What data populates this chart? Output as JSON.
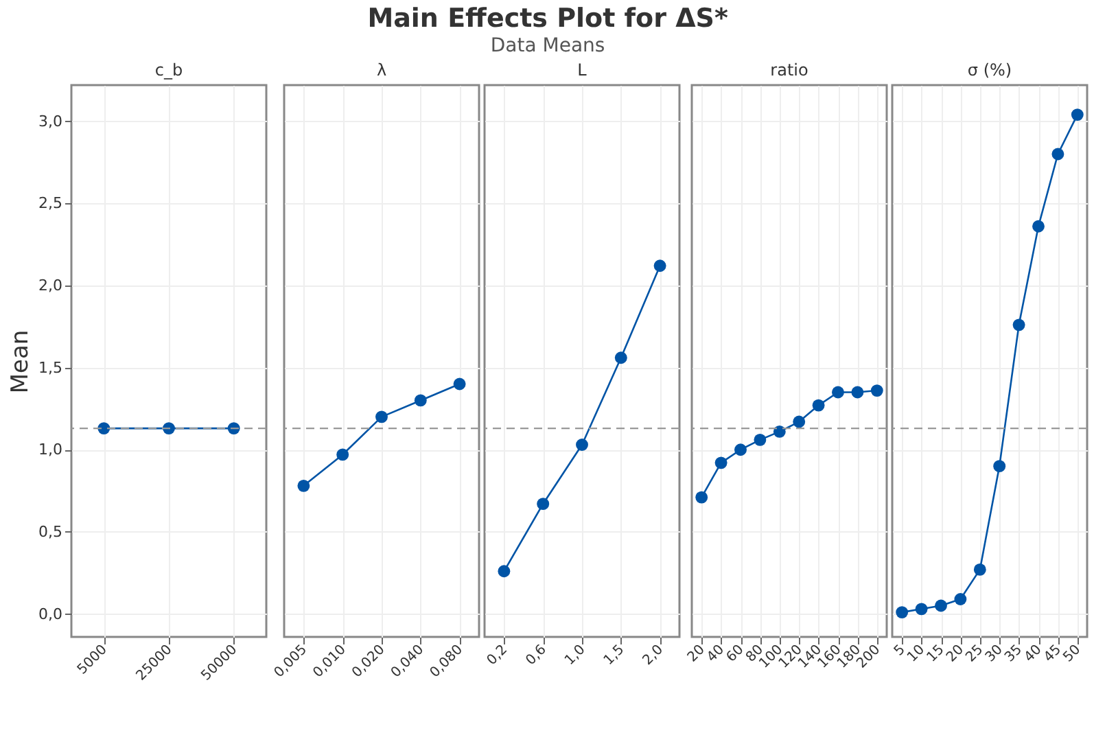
{
  "chart_data": [
    {
      "type": "line",
      "xlabel": "c_b",
      "ylabel": "Mean",
      "categories": [
        "5000",
        "25000",
        "50000"
      ],
      "values": [
        1.13,
        1.13,
        1.13
      ],
      "color": "#0054a6",
      "ylim": [
        -0.14,
        3.22
      ],
      "yticks": [
        {
          "value": 0,
          "label": "0,0"
        },
        {
          "value": 0.5,
          "label": "0,5"
        },
        {
          "value": 1,
          "label": "1,0"
        },
        {
          "value": 1.5,
          "label": "1,5"
        },
        {
          "value": 2,
          "label": "2,0"
        },
        {
          "value": 2.5,
          "label": "2,5"
        },
        {
          "value": 3,
          "label": "3,0"
        }
      ],
      "grid": true,
      "marker": "circle",
      "ref_lines": [
        {
          "axis": "y",
          "value": 1.13,
          "color": "#999999",
          "line_style": "dashed"
        }
      ]
    },
    {
      "type": "line",
      "xlabel": "λ",
      "categories": [
        "0,005",
        "0,010",
        "0,020",
        "0,040",
        "0,080"
      ],
      "values": [
        0.78,
        0.97,
        1.2,
        1.3,
        1.4
      ],
      "color": "#0054a6",
      "ylim": [
        -0.14,
        3.22
      ],
      "yticks": [
        0,
        0.5,
        1,
        1.5,
        2,
        2.5,
        3
      ],
      "tick_labels": "x",
      "grid": true,
      "marker": "circle",
      "ref_lines": [
        {
          "axis": "y",
          "value": 1.13,
          "color": "#999999",
          "line_style": "dashed"
        }
      ]
    },
    {
      "type": "line",
      "title": "Main Effects Plot for ΔS*",
      "subtitle": "Data Means",
      "xlabel": "L",
      "categories": [
        "0,2",
        "0,6",
        "1,0",
        "1,5",
        "2,0"
      ],
      "values": [
        0.26,
        0.67,
        1.03,
        1.56,
        2.12
      ],
      "color": "#0054a6",
      "ylim": [
        -0.14,
        3.22
      ],
      "yticks": [
        0,
        0.5,
        1,
        1.5,
        2,
        2.5,
        3
      ],
      "tick_labels": "x",
      "grid": true,
      "marker": "circle",
      "ref_lines": [
        {
          "axis": "y",
          "value": 1.13,
          "color": "#999999",
          "line_style": "dashed"
        }
      ]
    },
    {
      "type": "line",
      "xlabel": "ratio",
      "categories": [
        "20",
        "40",
        "60",
        "80",
        "100",
        "120",
        "140",
        "160",
        "180",
        "200"
      ],
      "values": [
        0.71,
        0.92,
        1.0,
        1.06,
        1.11,
        1.17,
        1.27,
        1.35,
        1.35,
        1.36
      ],
      "color": "#0054a6",
      "ylim": [
        -0.14,
        3.22
      ],
      "yticks": [
        0,
        0.5,
        1,
        1.5,
        2,
        2.5,
        3
      ],
      "tick_labels": "x",
      "grid": true,
      "marker": "circle",
      "ref_lines": [
        {
          "axis": "y",
          "value": 1.13,
          "color": "#999999",
          "line_style": "dashed"
        }
      ]
    },
    {
      "type": "line",
      "xlabel": "σ (%)",
      "categories": [
        "5",
        "10",
        "15",
        "20",
        "25",
        "30",
        "35",
        "40",
        "45",
        "50"
      ],
      "values": [
        0.01,
        0.03,
        0.05,
        0.09,
        0.27,
        0.9,
        1.76,
        2.36,
        2.8,
        3.04
      ],
      "color": "#0054a6",
      "ylim": [
        -0.14,
        3.22
      ],
      "yticks": [
        0,
        0.5,
        1,
        1.5,
        2,
        2.5,
        3
      ],
      "tick_labels": "x",
      "grid": true,
      "marker": "circle",
      "ref_lines": [
        {
          "axis": "y",
          "value": 1.13,
          "color": "#999999",
          "line_style": "dashed"
        }
      ]
    }
  ]
}
